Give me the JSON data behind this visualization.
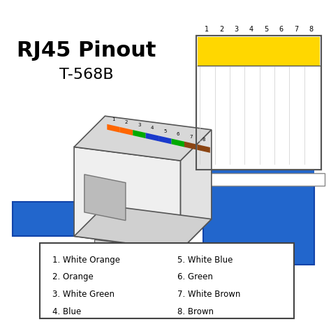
{
  "title_line1": "RJ45 Pinout",
  "title_line2": "T-568B",
  "pin_wire_sequence": [
    {
      "base": "#FF6600",
      "is_striped": true,
      "solid_color": null
    },
    {
      "base": "#FF6600",
      "is_striped": false,
      "solid_color": "#FF6600"
    },
    {
      "base": "#00AA00",
      "is_striped": true,
      "solid_color": null
    },
    {
      "base": "#1A3ACC",
      "is_striped": false,
      "solid_color": "#1A3ACC"
    },
    {
      "base": "#1A3ACC",
      "is_striped": true,
      "solid_color": null
    },
    {
      "base": "#00AA00",
      "is_striped": false,
      "solid_color": "#00AA00"
    },
    {
      "base": "#8B4513",
      "is_striped": true,
      "solid_color": null
    },
    {
      "base": "#8B4513",
      "is_striped": false,
      "solid_color": "#8B4513"
    }
  ],
  "cable_color": "#2266CC",
  "cable_edge_color": "#1144AA",
  "connector_body_color": "#F0F0F0",
  "connector_edge_color": "#555555",
  "yellow_top": "#FFD700",
  "legend_items": [
    [
      "1. White Orange",
      "5. White Blue"
    ],
    [
      "2. Orange",
      "6. Green"
    ],
    [
      "3. White Green",
      "7. White Brown"
    ],
    [
      "4. Blue",
      "8. Brown"
    ]
  ]
}
